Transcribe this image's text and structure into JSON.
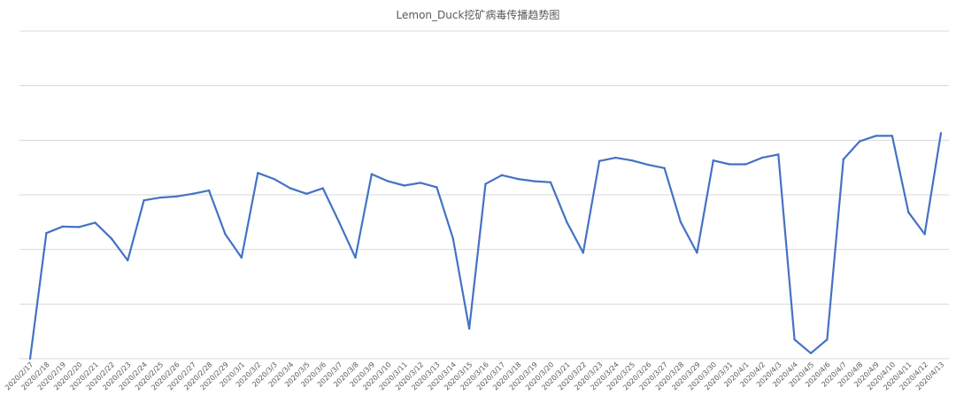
{
  "chart_data": {
    "type": "line",
    "title": "Lemon_Duck挖矿病毒传播趋势图",
    "xlabel": "",
    "ylabel": "",
    "ylim": [
      0,
      6
    ],
    "grid": true,
    "line_color": "#4472C4",
    "grid_color": "#D9D9D9",
    "categories": [
      "2020/2/17",
      "2020/2/18",
      "2020/2/19",
      "2020/2/20",
      "2020/2/21",
      "2020/2/22",
      "2020/2/23",
      "2020/2/24",
      "2020/2/25",
      "2020/2/26",
      "2020/2/27",
      "2020/2/28",
      "2020/2/29",
      "2020/3/1",
      "2020/3/2",
      "2020/3/3",
      "2020/3/4",
      "2020/3/5",
      "2020/3/6",
      "2020/3/7",
      "2020/3/8",
      "2020/3/9",
      "2020/3/10",
      "2020/3/11",
      "2020/3/12",
      "2020/3/13",
      "2020/3/14",
      "2020/3/15",
      "2020/3/16",
      "2020/3/17",
      "2020/3/18",
      "2020/3/19",
      "2020/3/20",
      "2020/3/21",
      "2020/3/22",
      "2020/3/23",
      "2020/3/24",
      "2020/3/25",
      "2020/3/26",
      "2020/3/27",
      "2020/3/28",
      "2020/3/29",
      "2020/3/30",
      "2020/3/31",
      "2020/4/1",
      "2020/4/2",
      "2020/4/3",
      "2020/4/4",
      "2020/4/5",
      "2020/4/6",
      "2020/4/7",
      "2020/4/8",
      "2020/4/9",
      "2020/4/10",
      "2020/4/11",
      "2020/4/12",
      "2020/4/13"
    ],
    "values": [
      0.0,
      2.3,
      2.42,
      2.41,
      2.49,
      2.2,
      1.8,
      2.9,
      2.95,
      2.97,
      3.02,
      3.08,
      2.28,
      1.85,
      3.4,
      3.29,
      3.12,
      3.02,
      3.12,
      2.5,
      1.85,
      3.38,
      3.25,
      3.17,
      3.22,
      3.14,
      2.2,
      0.55,
      3.2,
      3.36,
      3.29,
      3.25,
      3.23,
      2.5,
      1.94,
      3.62,
      3.68,
      3.63,
      3.55,
      3.49,
      2.5,
      1.94,
      3.63,
      3.56,
      3.56,
      3.68,
      3.74,
      0.35,
      0.1,
      0.35,
      3.65,
      3.98,
      4.08,
      4.08,
      2.68,
      2.28,
      4.13
    ]
  }
}
